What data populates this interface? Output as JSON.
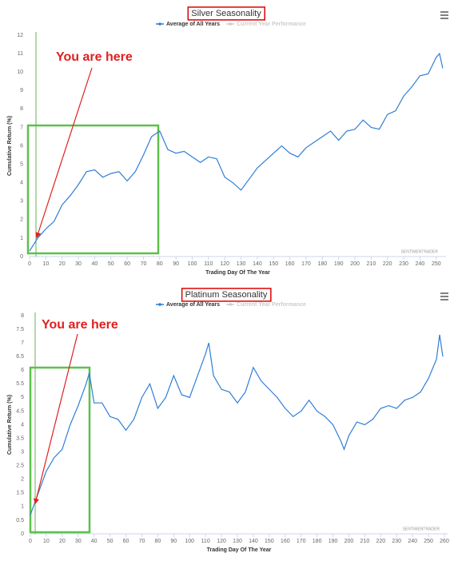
{
  "chart_data": [
    {
      "type": "line",
      "title": "Silver Seasonality",
      "x_label": "Trading Day Of The Year",
      "y_label": "Cumulative Return (%)",
      "annotation": "You are here",
      "watermark": "SENTIMENTRADER",
      "grid": false,
      "xlim": [
        0,
        256
      ],
      "ylim": [
        0,
        12
      ],
      "xticks": [
        0,
        10,
        20,
        30,
        40,
        50,
        60,
        70,
        80,
        90,
        100,
        110,
        120,
        130,
        140,
        150,
        160,
        170,
        180,
        190,
        200,
        210,
        220,
        230,
        240,
        250
      ],
      "yticks": [
        0,
        1,
        2,
        3,
        4,
        5,
        6,
        7,
        8,
        9,
        10,
        11,
        12
      ],
      "x": [
        0,
        5,
        10,
        15,
        20,
        25,
        30,
        35,
        40,
        45,
        50,
        55,
        60,
        65,
        70,
        75,
        80,
        85,
        90,
        95,
        100,
        105,
        110,
        115,
        120,
        125,
        130,
        135,
        140,
        145,
        150,
        155,
        160,
        165,
        170,
        175,
        180,
        185,
        190,
        195,
        200,
        205,
        210,
        215,
        220,
        225,
        230,
        235,
        240,
        245,
        250,
        252,
        254
      ],
      "series": [
        {
          "name": "Average of All Years",
          "color": "#2f7ed8",
          "values": [
            0.3,
            1.0,
            1.5,
            1.9,
            2.8,
            3.3,
            3.9,
            4.6,
            4.7,
            4.3,
            4.5,
            4.6,
            4.1,
            4.6,
            5.5,
            6.5,
            6.8,
            5.8,
            5.6,
            5.7,
            5.4,
            5.1,
            5.4,
            5.3,
            4.3,
            4.0,
            3.6,
            4.2,
            4.8,
            5.2,
            5.6,
            6.0,
            5.6,
            5.4,
            5.9,
            6.2,
            6.5,
            6.8,
            6.3,
            6.8,
            6.9,
            7.4,
            7.0,
            6.9,
            7.7,
            7.9,
            8.7,
            9.2,
            9.8,
            9.9,
            10.8,
            11.0,
            10.2
          ]
        },
        {
          "name": "Current Year Performance",
          "color": "#cccccc",
          "hidden": true
        }
      ]
    },
    {
      "type": "line",
      "title": "Platinum Seasonality",
      "x_label": "Trading Day Of The Year",
      "y_label": "Cumulative Return (%)",
      "annotation": "You are here",
      "watermark": "SENTIMENTRADER",
      "grid": false,
      "xlim": [
        0,
        262
      ],
      "ylim": [
        0,
        8
      ],
      "xticks": [
        0,
        10,
        20,
        30,
        40,
        50,
        60,
        70,
        80,
        90,
        100,
        110,
        120,
        130,
        140,
        150,
        160,
        170,
        180,
        190,
        200,
        210,
        220,
        230,
        240,
        250,
        260
      ],
      "yticks": [
        0,
        0.5,
        1,
        1.5,
        2,
        2.5,
        3,
        3.5,
        4,
        4.5,
        5,
        5.5,
        6,
        6.5,
        7,
        7.5,
        8
      ],
      "x": [
        0,
        5,
        10,
        15,
        20,
        25,
        30,
        35,
        37,
        40,
        45,
        50,
        55,
        60,
        65,
        70,
        75,
        80,
        85,
        90,
        95,
        100,
        105,
        110,
        112,
        115,
        120,
        125,
        130,
        135,
        140,
        145,
        150,
        155,
        160,
        165,
        170,
        175,
        180,
        185,
        190,
        195,
        197,
        200,
        205,
        210,
        215,
        220,
        225,
        230,
        235,
        240,
        245,
        250,
        255,
        257,
        259
      ],
      "series": [
        {
          "name": "Average of All Years",
          "color": "#2f7ed8",
          "values": [
            0.7,
            1.5,
            2.3,
            2.8,
            3.1,
            4.0,
            4.7,
            5.5,
            5.9,
            4.8,
            4.8,
            4.3,
            4.2,
            3.8,
            4.2,
            5.0,
            5.5,
            4.6,
            5.0,
            5.8,
            5.1,
            5.0,
            5.8,
            6.6,
            7.0,
            5.8,
            5.3,
            5.2,
            4.8,
            5.2,
            6.1,
            5.6,
            5.3,
            5.0,
            4.6,
            4.3,
            4.5,
            4.9,
            4.5,
            4.3,
            4.0,
            3.4,
            3.1,
            3.6,
            4.1,
            4.0,
            4.2,
            4.6,
            4.7,
            4.6,
            4.9,
            5.0,
            5.2,
            5.7,
            6.4,
            7.3,
            6.5
          ]
        },
        {
          "name": "Current Year Performance",
          "color": "#cccccc",
          "hidden": true
        }
      ]
    }
  ]
}
